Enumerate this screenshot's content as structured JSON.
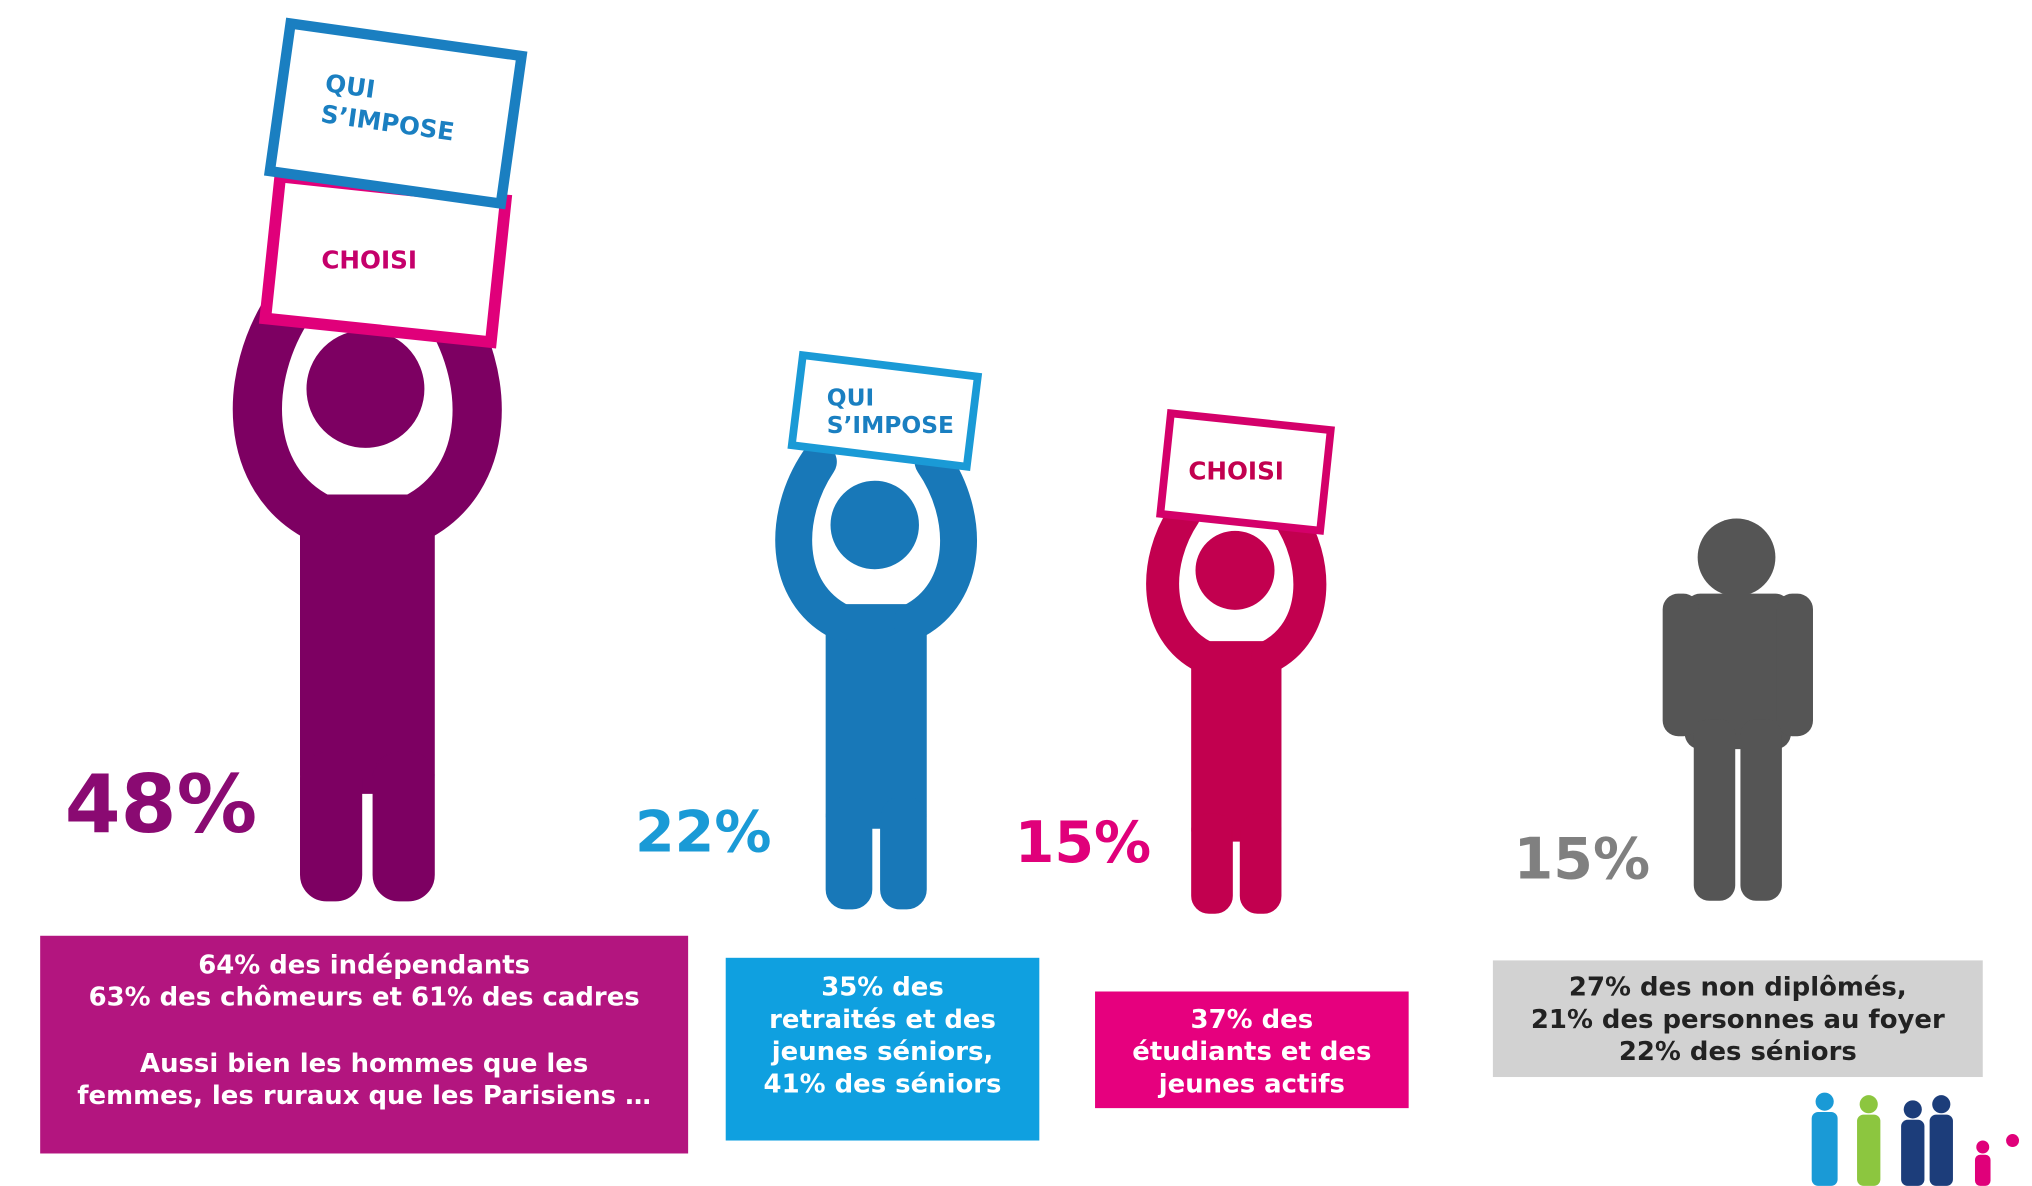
{
  "figures": [
    {
      "signs": [
        {
          "lines": [
            "QUI",
            "S’IMPOSE"
          ]
        },
        {
          "lines": [
            "CHOISI"
          ]
        }
      ],
      "percent": "48%",
      "description": [
        [
          "64% des indépendants",
          "63% des chômeurs et 61% des cadres"
        ],
        [
          "Aussi bien les hommes que les",
          "femmes, les ruraux que les Parisiens …"
        ]
      ]
    },
    {
      "signs": [
        {
          "lines": [
            "QUI",
            "S’IMPOSE"
          ]
        }
      ],
      "percent": "22%",
      "description": [
        [
          "35% des",
          "retraités et des",
          "jeunes séniors,",
          "41% des séniors"
        ]
      ]
    },
    {
      "signs": [
        {
          "lines": [
            "CHOISI"
          ]
        }
      ],
      "percent": "15%",
      "description": [
        [
          "37% des",
          "étudiants et des",
          "jeunes actifs"
        ]
      ]
    },
    {
      "signs": [],
      "percent": "15%",
      "description": [
        [
          "27% des non diplômés,",
          "21% des personnes au foyer",
          "22% des séniors"
        ]
      ]
    }
  ]
}
